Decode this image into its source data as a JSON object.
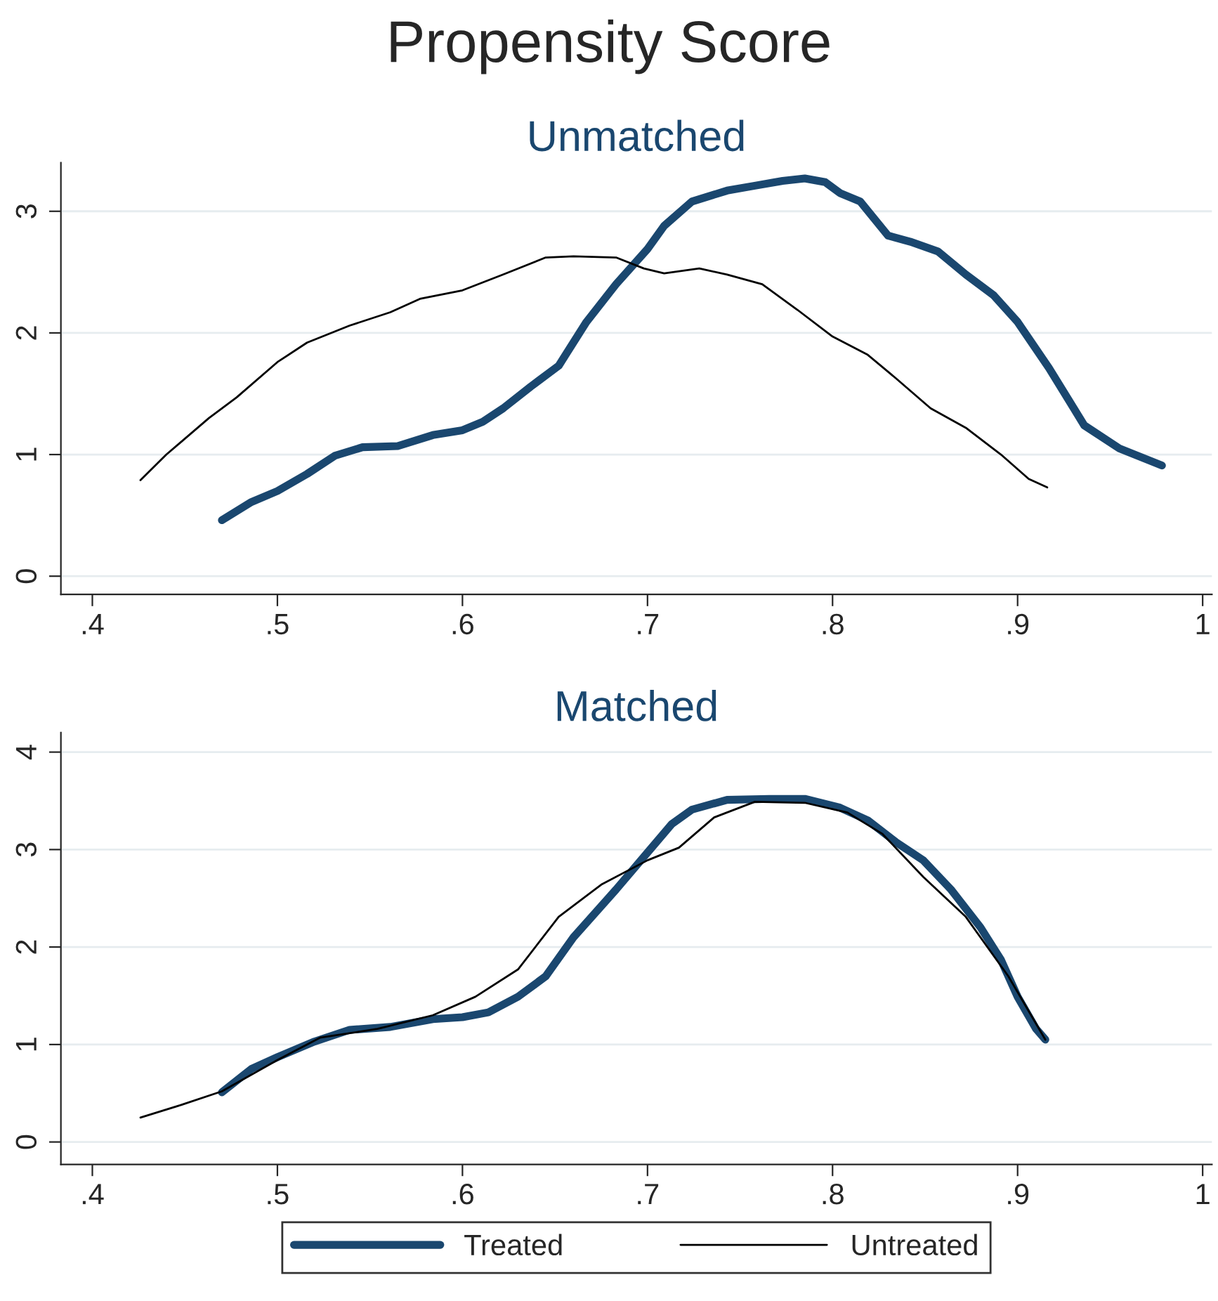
{
  "chart_data": [
    {
      "type": "line",
      "title": "Propensity Score",
      "subtitle": "Unmatched",
      "xlim": [
        0.383,
        1.005
      ],
      "xticks": [
        {
          "value": 0.4,
          "label": ".4"
        },
        {
          "value": 0.5,
          "label": ".5"
        },
        {
          "value": 0.6,
          "label": ".6"
        },
        {
          "value": 0.7,
          "label": ".7"
        },
        {
          "value": 0.8,
          "label": ".8"
        },
        {
          "value": 0.9,
          "label": ".9"
        },
        1
      ],
      "ylim": [
        -0.15,
        3.4
      ],
      "yticks": [
        0,
        1,
        2,
        3
      ],
      "grid": "y",
      "series": [
        {
          "color": "#1a476f",
          "x": [
            0.47,
            0.486,
            0.5,
            0.516,
            0.531,
            0.546,
            0.565,
            0.584,
            0.6,
            0.611,
            0.622,
            0.637,
            0.652,
            0.667,
            0.683,
            0.7,
            0.709,
            0.724,
            0.743,
            0.758,
            0.773,
            0.785,
            0.796,
            0.804,
            0.815,
            0.83,
            0.842,
            0.857,
            0.872,
            0.887,
            0.9,
            0.917,
            0.936,
            0.955,
            0.978
          ],
          "values": [
            0.46,
            0.61,
            0.7,
            0.84,
            0.99,
            1.06,
            1.07,
            1.16,
            1.2,
            1.27,
            1.38,
            1.56,
            1.73,
            2.09,
            2.4,
            2.69,
            2.88,
            3.08,
            3.17,
            3.21,
            3.25,
            3.27,
            3.24,
            3.15,
            3.08,
            2.8,
            2.75,
            2.67,
            2.48,
            2.31,
            2.09,
            1.71,
            1.24,
            1.05,
            0.91
          ]
        },
        {
          "color": "#000000",
          "x": [
            0.426,
            0.44,
            0.463,
            0.478,
            0.5,
            0.516,
            0.539,
            0.561,
            0.577,
            0.6,
            0.622,
            0.645,
            0.66,
            0.683,
            0.698,
            0.709,
            0.728,
            0.743,
            0.762,
            0.781,
            0.8,
            0.819,
            0.834,
            0.853,
            0.872,
            0.891,
            0.906,
            0.916
          ],
          "values": [
            0.79,
            1.0,
            1.3,
            1.47,
            1.76,
            1.92,
            2.06,
            2.17,
            2.28,
            2.35,
            2.48,
            2.62,
            2.63,
            2.62,
            2.53,
            2.49,
            2.53,
            2.48,
            2.4,
            2.19,
            1.97,
            1.82,
            1.63,
            1.38,
            1.22,
            1.0,
            0.8,
            0.73
          ]
        }
      ]
    },
    {
      "type": "line",
      "subtitle": "Matched",
      "xlim": [
        0.383,
        1.005
      ],
      "xticks": [
        {
          "value": 0.4,
          "label": ".4"
        },
        {
          "value": 0.5,
          "label": ".5"
        },
        {
          "value": 0.6,
          "label": ".6"
        },
        {
          "value": 0.7,
          "label": ".7"
        },
        {
          "value": 0.8,
          "label": ".8"
        },
        {
          "value": 0.9,
          "label": ".9"
        },
        1
      ],
      "ylim": [
        -0.23,
        4.2
      ],
      "yticks": [
        0,
        1,
        2,
        3,
        4
      ],
      "grid": "y",
      "legend": "bottom",
      "series": [
        {
          "name": "Treated",
          "color": "#1a476f",
          "x": [
            0.47,
            0.486,
            0.5,
            0.52,
            0.539,
            0.561,
            0.584,
            0.6,
            0.614,
            0.63,
            0.645,
            0.66,
            0.683,
            0.7,
            0.713,
            0.724,
            0.743,
            0.766,
            0.785,
            0.804,
            0.819,
            0.834,
            0.849,
            0.864,
            0.88,
            0.891,
            0.9,
            0.91,
            0.915
          ],
          "values": [
            0.51,
            0.75,
            0.87,
            1.03,
            1.15,
            1.18,
            1.26,
            1.28,
            1.33,
            1.49,
            1.7,
            2.1,
            2.59,
            2.97,
            3.26,
            3.41,
            3.51,
            3.52,
            3.52,
            3.43,
            3.3,
            3.08,
            2.89,
            2.59,
            2.2,
            1.87,
            1.49,
            1.16,
            1.05
          ]
        },
        {
          "name": "Untreated",
          "color": "#000000",
          "x": [
            0.426,
            0.448,
            0.47,
            0.5,
            0.523,
            0.554,
            0.584,
            0.607,
            0.63,
            0.652,
            0.675,
            0.7,
            0.717,
            0.736,
            0.758,
            0.785,
            0.808,
            0.827,
            0.849,
            0.872,
            0.895,
            0.915
          ],
          "values": [
            0.25,
            0.38,
            0.52,
            0.84,
            1.07,
            1.16,
            1.3,
            1.49,
            1.77,
            2.31,
            2.64,
            2.89,
            3.02,
            3.33,
            3.49,
            3.48,
            3.38,
            3.16,
            2.72,
            2.31,
            1.7,
            1.05
          ]
        }
      ]
    }
  ]
}
